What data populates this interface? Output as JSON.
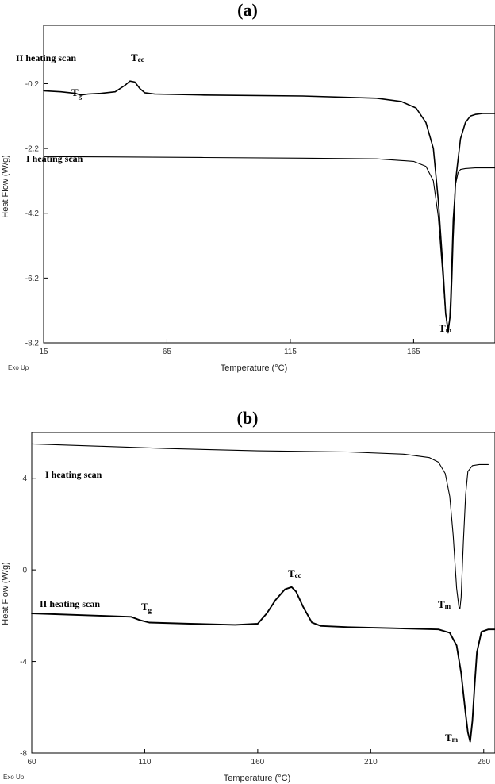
{
  "chart_data": [
    {
      "type": "line",
      "panel_label": "(a)",
      "title": "",
      "xlabel": "Temperature (°C)",
      "ylabel": "Heat Flow (W/g)",
      "corner_note": "Exo Up",
      "xlim": [
        15,
        198
      ],
      "ylim": [
        -8.2,
        1.6
      ],
      "xticks": [
        15,
        65,
        115,
        165
      ],
      "xtick_labels": [
        "15",
        "65",
        "115",
        "165"
      ],
      "yticks": [
        -8.2,
        -6.2,
        -4.2,
        -2.2,
        -0.2
      ],
      "ytick_labels": [
        "-8.2",
        "-6.2",
        "-4.2",
        "-2.2",
        "-0.2"
      ],
      "grid": false,
      "legend": "none",
      "series": [
        {
          "label": "II heating scan",
          "stroke_width": 1.6,
          "x": [
            15,
            22,
            28,
            30,
            33,
            38,
            44,
            48,
            50,
            52,
            54,
            56,
            60,
            80,
            120,
            150,
            160,
            166,
            170,
            173,
            175,
            177,
            178,
            179,
            180,
            180.5,
            181,
            182,
            184,
            186,
            188,
            190,
            193,
            198
          ],
          "y": [
            -0.42,
            -0.45,
            -0.5,
            -0.55,
            -0.52,
            -0.5,
            -0.45,
            -0.25,
            -0.12,
            -0.15,
            -0.35,
            -0.48,
            -0.52,
            -0.55,
            -0.58,
            -0.65,
            -0.75,
            -0.95,
            -1.4,
            -2.2,
            -3.8,
            -6.0,
            -7.3,
            -7.8,
            -7.3,
            -6.2,
            -5.0,
            -3.2,
            -1.9,
            -1.4,
            -1.2,
            -1.15,
            -1.12,
            -1.12
          ]
        },
        {
          "label": "I heating scan",
          "stroke_width": 1.1,
          "x": [
            15,
            40,
            80,
            120,
            150,
            165,
            170,
            173,
            175,
            176.5,
            178,
            179,
            179.5,
            180,
            180.5,
            181,
            182,
            183,
            184,
            186,
            190,
            198
          ],
          "y": [
            -2.45,
            -2.46,
            -2.48,
            -2.5,
            -2.52,
            -2.6,
            -2.75,
            -3.2,
            -4.3,
            -5.8,
            -7.3,
            -7.9,
            -7.6,
            -6.8,
            -5.6,
            -4.4,
            -3.3,
            -2.95,
            -2.85,
            -2.82,
            -2.8,
            -2.8
          ]
        }
      ],
      "annotations": {
        "tcc": {
          "main": "T",
          "sub": "cc"
        },
        "tg": {
          "main": "T",
          "sub": "g"
        },
        "tm": {
          "main": "T",
          "sub": "m"
        }
      }
    },
    {
      "type": "line",
      "panel_label": "(b)",
      "title": "",
      "xlabel": "Temperature (°C)",
      "ylabel": "Heat Flow (W/g)",
      "corner_note": "Exo Up",
      "xlim": [
        60,
        265
      ],
      "ylim": [
        -8,
        6
      ],
      "xticks": [
        60,
        110,
        160,
        210,
        260
      ],
      "xtick_labels": [
        "60",
        "110",
        "160",
        "210",
        "260"
      ],
      "yticks": [
        -8,
        -4,
        0,
        4
      ],
      "ytick_labels": [
        "-8",
        "-4",
        "0",
        "4"
      ],
      "grid": false,
      "legend": "none",
      "series": [
        {
          "label": "I heating scan",
          "stroke_width": 1.1,
          "x": [
            60,
            90,
            120,
            160,
            200,
            225,
            236,
            240,
            243,
            245,
            246.5,
            248,
            249,
            249.5,
            250,
            251,
            252,
            253,
            255,
            258,
            262
          ],
          "y": [
            5.5,
            5.4,
            5.3,
            5.2,
            5.15,
            5.05,
            4.9,
            4.7,
            4.2,
            3.2,
            1.5,
            -0.8,
            -1.6,
            -1.7,
            -1.2,
            1.2,
            3.3,
            4.3,
            4.55,
            4.6,
            4.6
          ]
        },
        {
          "label": "II heating scan",
          "stroke_width": 1.9,
          "x": [
            60,
            90,
            104,
            108,
            112,
            130,
            150,
            160,
            164,
            168,
            172,
            175,
            177,
            180,
            184,
            188,
            200,
            220,
            240,
            245,
            248,
            250,
            252,
            253,
            254,
            255,
            256,
            257,
            259,
            262,
            265
          ],
          "y": [
            -1.9,
            -2.0,
            -2.05,
            -2.2,
            -2.3,
            -2.35,
            -2.4,
            -2.35,
            -1.9,
            -1.3,
            -0.85,
            -0.75,
            -0.95,
            -1.6,
            -2.3,
            -2.45,
            -2.5,
            -2.55,
            -2.6,
            -2.75,
            -3.3,
            -4.5,
            -6.3,
            -7.1,
            -7.5,
            -6.6,
            -5.0,
            -3.6,
            -2.7,
            -2.6,
            -2.6
          ]
        }
      ],
      "annotations": {
        "tcc": {
          "main": "T",
          "sub": "cc"
        },
        "tg": {
          "main": "T",
          "sub": "g"
        },
        "tm_top": {
          "main": "T",
          "sub": "m"
        },
        "tm_bottom": {
          "main": "T",
          "sub": "m"
        }
      }
    }
  ]
}
